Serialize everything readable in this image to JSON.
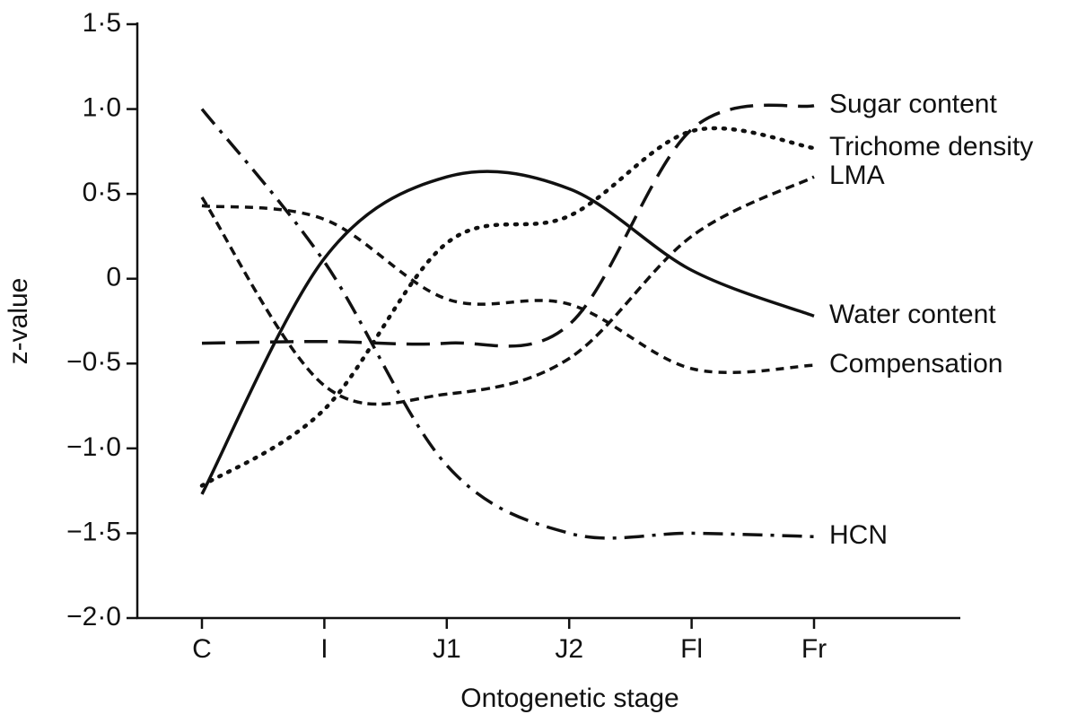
{
  "chart_data": {
    "type": "line",
    "x_label": "Ontogenetic stage",
    "y_label": "z-value",
    "categories": [
      "C",
      "I",
      "J1",
      "J2",
      "Fl",
      "Fr"
    ],
    "ylim": [
      -2,
      1.5
    ],
    "yticks": [
      {
        "value": 1.5,
        "label": "1·5"
      },
      {
        "value": 1.0,
        "label": "1·0"
      },
      {
        "value": 0.5,
        "label": "0·5"
      },
      0,
      {
        "value": -0.5,
        "label": "−0·5"
      },
      {
        "value": -1.0,
        "label": "−1·0"
      },
      {
        "value": -1.5,
        "label": "−1·5"
      },
      {
        "value": -2.0,
        "label": "−2·0"
      }
    ],
    "grid": false,
    "series": [
      {
        "name": "Sugar content",
        "color": "#111111",
        "dash": "long-dashed",
        "values": [
          -0.38,
          -0.37,
          -0.38,
          -0.27,
          0.88,
          1.02
        ]
      },
      {
        "name": "Trichome density",
        "color": "#111111",
        "dash": "dotted",
        "values": [
          -1.22,
          -0.77,
          0.21,
          0.37,
          0.87,
          0.77
        ]
      },
      {
        "name": "LMA",
        "color": "#111111",
        "dash": "short-dashed",
        "values": [
          0.48,
          -0.63,
          -0.68,
          -0.47,
          0.25,
          0.6
        ]
      },
      {
        "name": "Water content",
        "color": "#111111",
        "dash": "solid",
        "values": [
          -1.27,
          0.12,
          0.6,
          0.53,
          0.05,
          -0.22
        ]
      },
      {
        "name": "Compensation",
        "color": "#111111",
        "dash": "dashed",
        "values": [
          0.43,
          0.35,
          -0.12,
          -0.15,
          -0.53,
          -0.51
        ]
      },
      {
        "name": "HCN",
        "color": "#111111",
        "dash": "dash-dot",
        "values": [
          1.0,
          0.1,
          -1.1,
          -1.5,
          -1.5,
          -1.52
        ]
      }
    ]
  }
}
